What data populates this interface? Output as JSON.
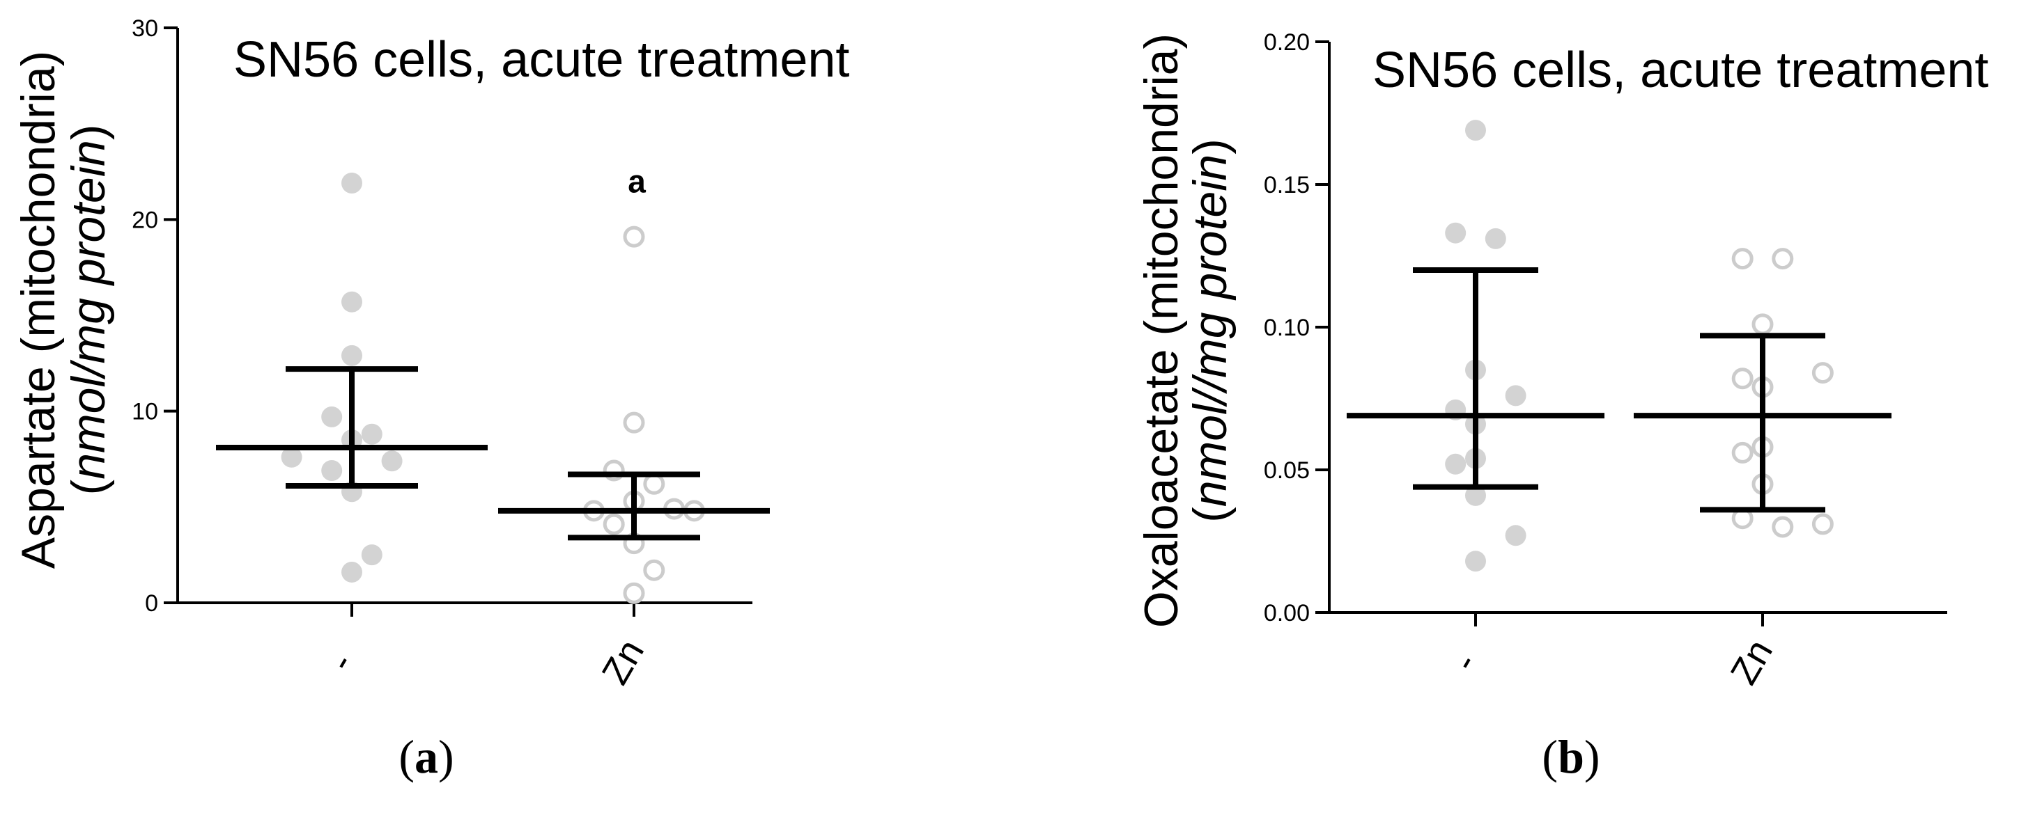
{
  "chart_data": [
    {
      "type": "scatter",
      "panel_label": "a",
      "title": "SN56 cells, acute treatment",
      "ylabel": "Aspartate (mitochondria)",
      "ylabel_units": "nmol/mg protein",
      "ylim": [
        0,
        30
      ],
      "yticks": [
        0,
        10,
        20,
        30
      ],
      "ytick_labels": [
        "0",
        "10",
        "20",
        "30"
      ],
      "categories": [
        "-",
        "Zn"
      ],
      "series": [
        {
          "category": "-",
          "marker": "filled",
          "color": "#d3d3d3",
          "points": [
            {
              "x": 0.0,
              "y": 21.9
            },
            {
              "x": 0.0,
              "y": 15.7
            },
            {
              "x": 0.0,
              "y": 12.9
            },
            {
              "x": -0.12,
              "y": 9.7
            },
            {
              "x": 0.0,
              "y": 8.5
            },
            {
              "x": 0.12,
              "y": 8.8
            },
            {
              "x": -0.36,
              "y": 7.6
            },
            {
              "x": -0.12,
              "y": 6.9
            },
            {
              "x": 0.24,
              "y": 7.4
            },
            {
              "x": 0.0,
              "y": 5.8
            },
            {
              "x": 0.12,
              "y": 2.5
            },
            {
              "x": 0.0,
              "y": 1.6
            }
          ],
          "mean": 8.1,
          "err_low": 6.1,
          "err_high": 12.2
        },
        {
          "category": "Zn",
          "marker": "open",
          "color": "#cccccc",
          "points": [
            {
              "x": 0.0,
              "y": 19.1
            },
            {
              "x": 0.0,
              "y": 9.4
            },
            {
              "x": -0.12,
              "y": 6.9
            },
            {
              "x": 0.12,
              "y": 6.2
            },
            {
              "x": 0.0,
              "y": 5.3
            },
            {
              "x": -0.24,
              "y": 4.8
            },
            {
              "x": 0.24,
              "y": 4.9
            },
            {
              "x": 0.36,
              "y": 4.8
            },
            {
              "x": -0.12,
              "y": 4.1
            },
            {
              "x": 0.0,
              "y": 3.1
            },
            {
              "x": 0.12,
              "y": 1.7
            },
            {
              "x": 0.0,
              "y": 0.5
            }
          ],
          "mean": 4.8,
          "err_low": 3.4,
          "err_high": 6.7,
          "annotation": "a",
          "annotation_y": 22
        }
      ]
    },
    {
      "type": "scatter",
      "panel_label": "b",
      "title": "SN56 cells, acute treatment",
      "ylabel": "Oxaloacetate (mitochondria)",
      "ylabel_units": "nmol//mg protein",
      "ylim": [
        0,
        0.2
      ],
      "yticks": [
        0,
        0.05,
        0.1,
        0.15,
        0.2
      ],
      "ytick_labels": [
        "0.00",
        "0.05",
        "0.10",
        "0.15",
        "0.20"
      ],
      "categories": [
        "-",
        "Zn"
      ],
      "series": [
        {
          "category": "-",
          "marker": "filled",
          "color": "#d3d3d3",
          "points": [
            {
              "x": 0.0,
              "y": 0.169
            },
            {
              "x": -0.12,
              "y": 0.133
            },
            {
              "x": 0.12,
              "y": 0.131
            },
            {
              "x": 0.0,
              "y": 0.085
            },
            {
              "x": 0.24,
              "y": 0.076
            },
            {
              "x": -0.12,
              "y": 0.071
            },
            {
              "x": 0.0,
              "y": 0.066
            },
            {
              "x": 0.0,
              "y": 0.054
            },
            {
              "x": -0.12,
              "y": 0.052
            },
            {
              "x": 0.0,
              "y": 0.041
            },
            {
              "x": 0.24,
              "y": 0.027
            },
            {
              "x": 0.0,
              "y": 0.018
            }
          ],
          "mean": 0.069,
          "err_low": 0.044,
          "err_high": 0.12
        },
        {
          "category": "Zn",
          "marker": "open",
          "color": "#cccccc",
          "points": [
            {
              "x": -0.12,
              "y": 0.124
            },
            {
              "x": 0.12,
              "y": 0.124
            },
            {
              "x": 0.0,
              "y": 0.101
            },
            {
              "x": 0.36,
              "y": 0.084
            },
            {
              "x": -0.12,
              "y": 0.082
            },
            {
              "x": 0.0,
              "y": 0.079
            },
            {
              "x": 0.0,
              "y": 0.058
            },
            {
              "x": -0.12,
              "y": 0.056
            },
            {
              "x": 0.0,
              "y": 0.045
            },
            {
              "x": -0.12,
              "y": 0.033
            },
            {
              "x": 0.36,
              "y": 0.031
            },
            {
              "x": 0.12,
              "y": 0.03
            }
          ],
          "mean": 0.069,
          "err_low": 0.036,
          "err_high": 0.097
        }
      ]
    }
  ]
}
